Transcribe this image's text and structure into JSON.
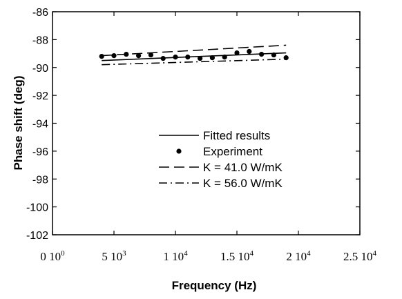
{
  "chart_data": {
    "type": "line",
    "xlabel": "Frequency  (Hz)",
    "ylabel": "Phase shift  (deg)",
    "xlim": [
      0,
      25000
    ],
    "ylim": [
      -102,
      -86
    ],
    "x_ticks": [
      0,
      5000,
      10000,
      15000,
      20000,
      25000
    ],
    "x_tick_labels": [
      {
        "base": "0 10",
        "exp": "0"
      },
      {
        "base": "5 10",
        "exp": "3"
      },
      {
        "base": "1 10",
        "exp": "4"
      },
      {
        "base": "1.5 10",
        "exp": "4"
      },
      {
        "base": "2 10",
        "exp": "4"
      },
      {
        "base": "2.5 10",
        "exp": "4"
      }
    ],
    "y_ticks": [
      -86,
      -88,
      -90,
      -92,
      -94,
      -96,
      -98,
      -100,
      -102
    ],
    "y_tick_labels": [
      "-86",
      "-88",
      "-90",
      "-92",
      "-94",
      "-96",
      "-98",
      "-100",
      "-102"
    ],
    "grid": false,
    "legend_position": "center",
    "series": [
      {
        "name": "Fitted   results",
        "style": "solid",
        "x": [
          4000,
          19000
        ],
        "y": [
          -89.5,
          -88.95
        ]
      },
      {
        "name": "Experiment",
        "style": "markers",
        "x": [
          4000,
          5000,
          6000,
          7000,
          8000,
          9000,
          10000,
          11000,
          12000,
          13000,
          14000,
          15000,
          16000,
          17000,
          18000,
          19000
        ],
        "y": [
          -89.2,
          -89.15,
          -89.05,
          -89.15,
          -89.1,
          -89.35,
          -89.25,
          -89.25,
          -89.35,
          -89.3,
          -89.25,
          -88.95,
          -88.85,
          -89.05,
          -89.1,
          -89.3
        ]
      },
      {
        "name": "K = 41.0 W/mK",
        "style": "dashed",
        "x": [
          4000,
          19000
        ],
        "y": [
          -89.15,
          -88.4
        ]
      },
      {
        "name": "K = 56.0 W/mK",
        "style": "dashdot",
        "x": [
          4000,
          19000
        ],
        "y": [
          -89.8,
          -89.4
        ]
      }
    ]
  }
}
